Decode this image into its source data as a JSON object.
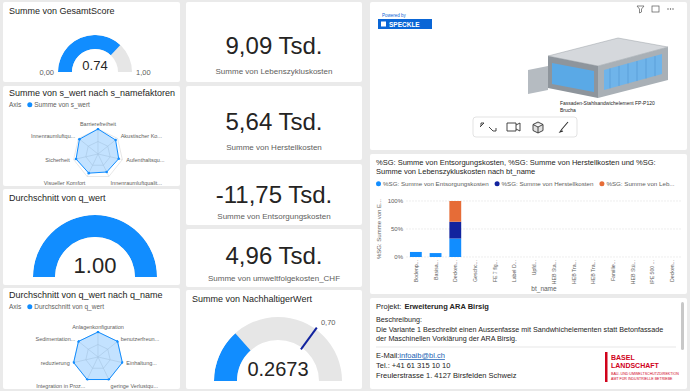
{
  "chart_data": [
    {
      "type": "gauge",
      "title": "Summe von GesamtScore",
      "values": [
        0.74
      ],
      "data_labels": true,
      "ylim": [
        0,
        1
      ],
      "yticks": [
        {
          "value": 0,
          "label": "0,00"
        },
        {
          "value": 1,
          "label": "1,00"
        }
      ],
      "color": "#118DFF"
    },
    {
      "type": "radar",
      "title": "Summe von s_wert nach s_namefaktoren",
      "legend_title": "Axis",
      "legend": "top-left",
      "categories": [
        "Barrierefreiheit",
        "Akustischer Ko...",
        "Aufenthaltsqu...",
        "Innenraumluftqualit...",
        "Visueller Komfort",
        "Sicherheit",
        "Innenraumluftqu..."
      ],
      "series": [
        {
          "name": "Summe von s_wert",
          "color": "#118DFF",
          "values": [
            1,
            0.9,
            0.85,
            0.8,
            0.85,
            0.9,
            0.95
          ]
        }
      ],
      "ylim": [
        0,
        1
      ],
      "yticks": [
        0.5,
        1
      ],
      "grid": true,
      "tick_labels": "x"
    },
    {
      "type": "gauge",
      "title": "Durchschnitt von q_wert",
      "values": [
        1
      ],
      "value_labels": [
        "1.00"
      ],
      "data_labels": true,
      "ylim": [
        0,
        1
      ],
      "tick_labels": false,
      "color": "#118DFF"
    },
    {
      "type": "radar",
      "title": "Durchschnitt von q_wert nach q_name",
      "legend_title": "Axis",
      "legend": "top-left",
      "categories": [
        "Anlagenkonfiguration",
        "benutzerfreun...",
        "Einhaltung...",
        "geringe Verlustqu...",
        "Integration in Proz...",
        "reduzierung",
        "Sedimentation..."
      ],
      "series": [
        {
          "name": "Durchschnitt von q_wert",
          "color": "#118DFF",
          "values": [
            1,
            1,
            1,
            1,
            1,
            1,
            1
          ]
        }
      ],
      "ylim": [
        0,
        1
      ],
      "yticks": [
        0.5,
        1
      ],
      "grid": true,
      "tick_labels": "x"
    },
    {
      "type": "gauge",
      "title": "Summe von NachhaltigerWert",
      "values": [
        0.2673
      ],
      "data_labels": true,
      "target": 0.7,
      "target_label": "0,70",
      "ylim": [
        0,
        1
      ],
      "tick_labels": false,
      "color": "#118DFF"
    },
    {
      "type": "bar",
      "stacked": true,
      "title": "%SG: Summe von Entsorgungskosten, %SG: Summe von Herstellkosten und %SG: Summe von Lebenszykluskosten nach bt_name",
      "xlabel": "bt_name",
      "ylabel": "%SG: Summe von E...",
      "legend": "top-left",
      "grid": true,
      "categories": [
        "Bodenp...",
        "Basisa...",
        "Decken...",
        "Geschc...",
        "FE 7 flg...",
        "Label D...",
        "Upfd...",
        "HEB Sta...",
        "HEB Tra...",
        "HEB Tra...",
        "Familie...",
        "HEB Stü...",
        "IPE 500 ...",
        "Decken..."
      ],
      "series": [
        {
          "name": "%SG: Summe von Entsorgungskosten",
          "color": "#118DFF",
          "values": [
            9,
            7,
            33,
            0,
            0,
            0,
            0,
            0,
            0,
            0,
            0,
            0,
            0,
            0
          ]
        },
        {
          "name": "%SG: Summe von Herstellkosten",
          "color": "#12239E",
          "values": [
            0,
            0,
            30,
            0,
            0,
            0,
            0,
            0,
            0,
            0,
            0,
            0,
            0,
            0
          ]
        },
        {
          "name": "%SG: Summe von Leb...",
          "color": "#E66C37",
          "values": [
            0,
            0,
            37,
            0,
            0,
            0,
            0,
            0,
            0,
            0,
            0,
            0,
            0,
            0
          ]
        }
      ],
      "ylim": [
        0,
        100
      ],
      "yticks": [
        {
          "value": 0,
          "label": "0%"
        },
        {
          "value": 50,
          "label": "50%"
        },
        {
          "value": 100,
          "label": "100%"
        }
      ]
    }
  ],
  "cards": [
    {
      "value": "9,09 Tsd.",
      "label": "Summe von Lebenszykluskosten"
    },
    {
      "value": "5,64 Tsd.",
      "label": "Summe von Herstellkosten"
    },
    {
      "value": "-11,75 Tsd.",
      "label": "Summe von Entsorgungskosten"
    },
    {
      "value": "4,96 Tsd.",
      "label": "Summe von umweltfolgekosten_CHF"
    }
  ],
  "viewer": {
    "badge_prefix": "Powered by",
    "badge": "SPECKLE",
    "label_lines": [
      "Fassaden-Stahlsandwichelement FP-P120",
      "Brucha"
    ]
  },
  "project": {
    "title_prefix": "Projekt:",
    "title": "Erweiterung ARA Birsig",
    "description_label": "Beschreibung:",
    "description": "Die Variante 1 Beschreibt einen Aussenfasse mit Sandwhichelementen statt Betonfassade der Maschinellen Vorklärung der ARA Birsig.",
    "email_label": "E-Mail:",
    "email": "infoaib@bl.ch",
    "phone": "Tel.: +41 61 315 10 10",
    "address": "Freulerstrasse 1. 4127 Birsfelden Schweiz"
  },
  "logo": {
    "lines": [
      "BASEL",
      "LANDSCHAFT"
    ],
    "sub": [
      "BAU- UND UMWELTSCHUTZDIREKTION",
      "AMT FÜR INDUSTRIELLE BETRIEBE"
    ]
  }
}
